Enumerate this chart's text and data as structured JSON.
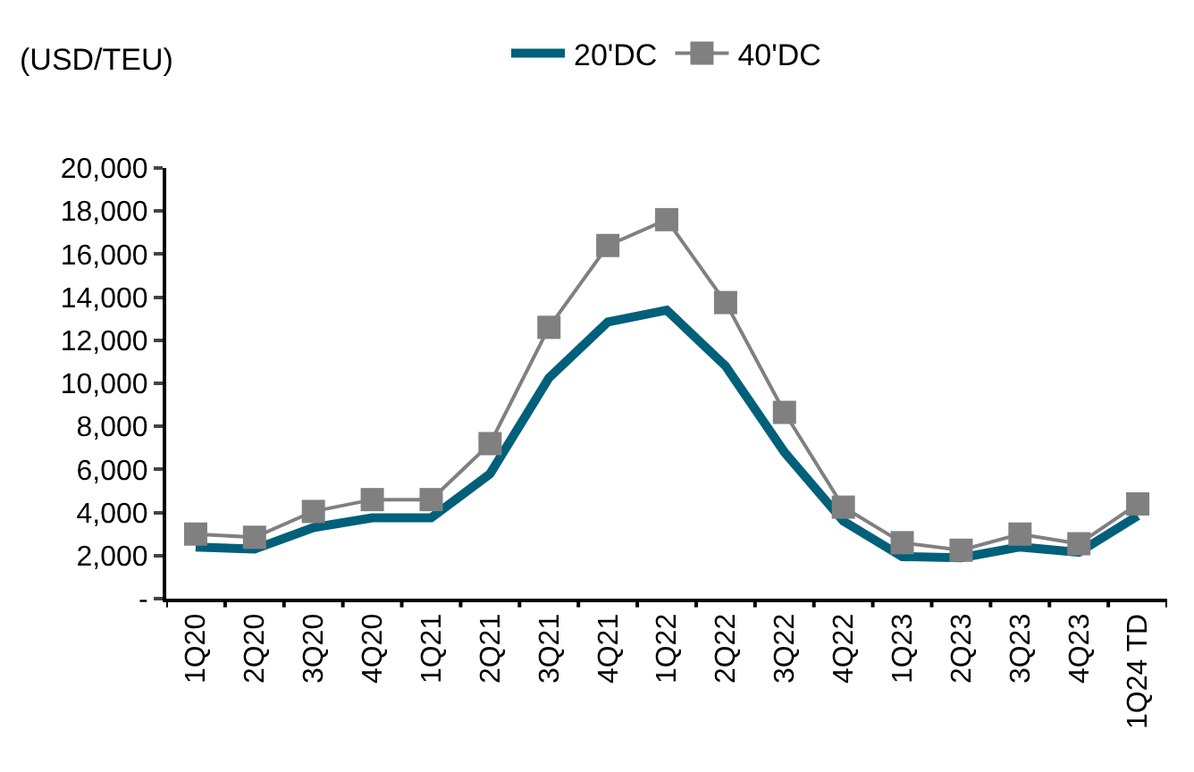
{
  "chart_data": {
    "type": "line",
    "ylabel": "(USD/TEU)",
    "categories": [
      "1Q20",
      "2Q20",
      "3Q20",
      "4Q20",
      "1Q21",
      "2Q21",
      "3Q21",
      "4Q21",
      "1Q22",
      "2Q22",
      "3Q22",
      "4Q22",
      "1Q23",
      "2Q23",
      "3Q23",
      "4Q23",
      "1Q24 TD"
    ],
    "series": [
      {
        "name": "20'DC",
        "color": "#00607a",
        "marker": "none",
        "values": [
          2400,
          2300,
          3300,
          3750,
          3750,
          5800,
          10250,
          12850,
          13400,
          10800,
          6800,
          3600,
          1950,
          1900,
          2400,
          2150,
          3850
        ]
      },
      {
        "name": "40'DC",
        "color": "#808080",
        "marker": "square",
        "values": [
          3000,
          2850,
          4050,
          4600,
          4600,
          7200,
          12600,
          16400,
          17600,
          13750,
          8650,
          4250,
          2600,
          2250,
          3000,
          2550,
          4400
        ]
      }
    ],
    "ylim": [
      0,
      20000
    ],
    "yticks": [
      {
        "value": 0,
        "label": "-"
      },
      {
        "value": 2000,
        "label": "2,000"
      },
      {
        "value": 4000,
        "label": "4,000"
      },
      {
        "value": 6000,
        "label": "6,000"
      },
      {
        "value": 8000,
        "label": "8,000"
      },
      {
        "value": 10000,
        "label": "10,000"
      },
      {
        "value": 12000,
        "label": "12,000"
      },
      {
        "value": 14000,
        "label": "14,000"
      },
      {
        "value": 16000,
        "label": "16,000"
      },
      {
        "value": 18000,
        "label": "18,000"
      },
      {
        "value": 20000,
        "label": "20,000"
      }
    ],
    "legend": "top"
  }
}
